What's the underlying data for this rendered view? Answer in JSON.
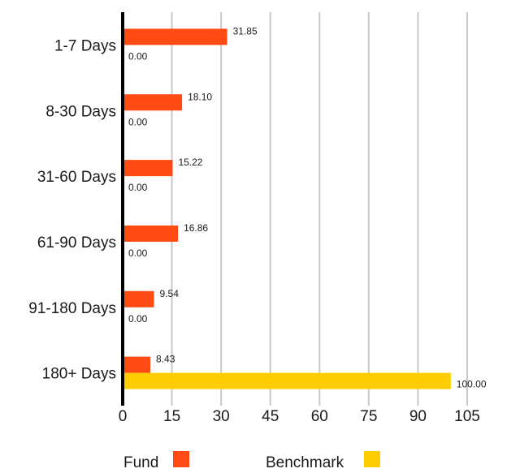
{
  "chart_data": {
    "type": "bar",
    "orientation": "horizontal",
    "categories": [
      "1-7 Days",
      "8-30 Days",
      "31-60 Days",
      "61-90 Days",
      "91-180 Days",
      "180+ Days"
    ],
    "series": [
      {
        "name": "Fund",
        "color": "#ff4a14",
        "values": [
          31.85,
          18.1,
          15.22,
          16.86,
          9.54,
          8.43
        ],
        "labels": [
          "31.85",
          "18.10",
          "15.22",
          "16.86",
          "9.54",
          "8.43"
        ]
      },
      {
        "name": "Benchmark",
        "color": "#ffcc00",
        "values": [
          0.0,
          0.0,
          0.0,
          0.0,
          0.0,
          100.0
        ],
        "labels": [
          "0.00",
          "0.00",
          "0.00",
          "0.00",
          "0.00",
          "100.00"
        ]
      }
    ],
    "xlim": [
      0,
      105
    ],
    "xticks": [
      0,
      15,
      30,
      45,
      60,
      75,
      90,
      105
    ],
    "grid": true,
    "legend_position": "bottom"
  }
}
